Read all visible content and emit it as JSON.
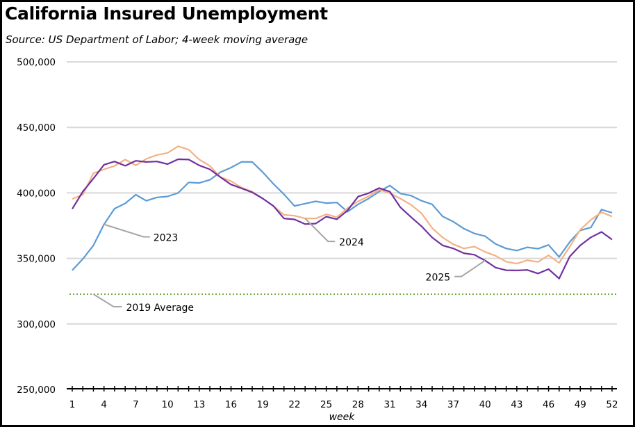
{
  "chart_data": {
    "type": "line",
    "title": "California Insured Unemployment",
    "subtitle": "Source:  US Department of Labor; 4-week moving average",
    "xlabel": "week",
    "ylabel": "",
    "xlim": [
      1,
      52
    ],
    "ylim": [
      250000,
      500000
    ],
    "grid": true,
    "legend": "none (direct line annotations)",
    "x_ticks": [
      1,
      4,
      7,
      10,
      13,
      16,
      19,
      22,
      25,
      28,
      31,
      34,
      37,
      40,
      43,
      46,
      49,
      52
    ],
    "y_ticks": [
      250000,
      300000,
      350000,
      400000,
      450000,
      500000
    ],
    "y_tick_labels": [
      "250,000",
      "300,000",
      "350,000",
      "400,000",
      "450,000",
      "500,000"
    ],
    "x": [
      1,
      2,
      3,
      4,
      5,
      6,
      7,
      8,
      9,
      10,
      11,
      12,
      13,
      14,
      15,
      16,
      17,
      18,
      19,
      20,
      21,
      22,
      23,
      24,
      25,
      26,
      27,
      28,
      29,
      30,
      31,
      32,
      33,
      34,
      35,
      36,
      37,
      38,
      39,
      40,
      41,
      42,
      43,
      44,
      45,
      46,
      47,
      48,
      49,
      50,
      51,
      52
    ],
    "series": [
      {
        "name": "2023",
        "color": "#5B9BD5",
        "values": [
          341000,
          349600,
          360000,
          376000,
          388000,
          392000,
          398600,
          394000,
          396600,
          397300,
          400000,
          408000,
          407600,
          410000,
          415800,
          419300,
          423700,
          423600,
          415800,
          406900,
          399000,
          390000,
          391800,
          393600,
          392200,
          392700,
          385600,
          391300,
          395700,
          401000,
          405700,
          399500,
          398000,
          394000,
          391300,
          382000,
          378000,
          372700,
          369000,
          367000,
          361000,
          357600,
          356000,
          358500,
          357400,
          360300,
          351100,
          362600,
          371400,
          373600,
          387300,
          384800
        ]
      },
      {
        "name": "2024",
        "color": "#F4B183",
        "values": [
          395400,
          398600,
          415000,
          418000,
          420600,
          425500,
          421000,
          426000,
          429000,
          430500,
          435600,
          433000,
          425500,
          420600,
          412000,
          409000,
          404000,
          401000,
          395700,
          390000,
          383300,
          382600,
          380500,
          380500,
          383700,
          381500,
          388300,
          393600,
          397500,
          402500,
          399800,
          395700,
          391000,
          384400,
          373200,
          366000,
          360800,
          357600,
          359000,
          355000,
          352000,
          347500,
          346000,
          348600,
          347300,
          352400,
          346600,
          359000,
          372000,
          379400,
          385300,
          382000
        ]
      },
      {
        "name": "2025",
        "color": "#7030A0",
        "values": [
          387800,
          401000,
          411000,
          421500,
          424000,
          420700,
          424500,
          423600,
          424000,
          422000,
          425700,
          425500,
          421000,
          418000,
          412000,
          406400,
          403500,
          400400,
          395700,
          390000,
          380500,
          379800,
          376200,
          376600,
          381900,
          379900,
          386500,
          397200,
          399800,
          403700,
          401000,
          389000,
          381600,
          374500,
          366000,
          359900,
          357600,
          354000,
          352800,
          348400,
          343000,
          341000,
          340800,
          341200,
          338500,
          341800,
          334600,
          351500,
          360000,
          366100,
          370200,
          364400
        ]
      },
      {
        "name": "2019 Average",
        "color": "#70AD47",
        "style": "dotted",
        "value": 322700
      }
    ],
    "annotations": [
      {
        "label": "2023",
        "series": "2023",
        "week": 4
      },
      {
        "label": "2024",
        "series": "2024",
        "week": 23
      },
      {
        "label": "2025",
        "series": "2025",
        "week": 40
      },
      {
        "label": "2019 Average",
        "series": "2019 Average",
        "week": 3
      }
    ]
  }
}
